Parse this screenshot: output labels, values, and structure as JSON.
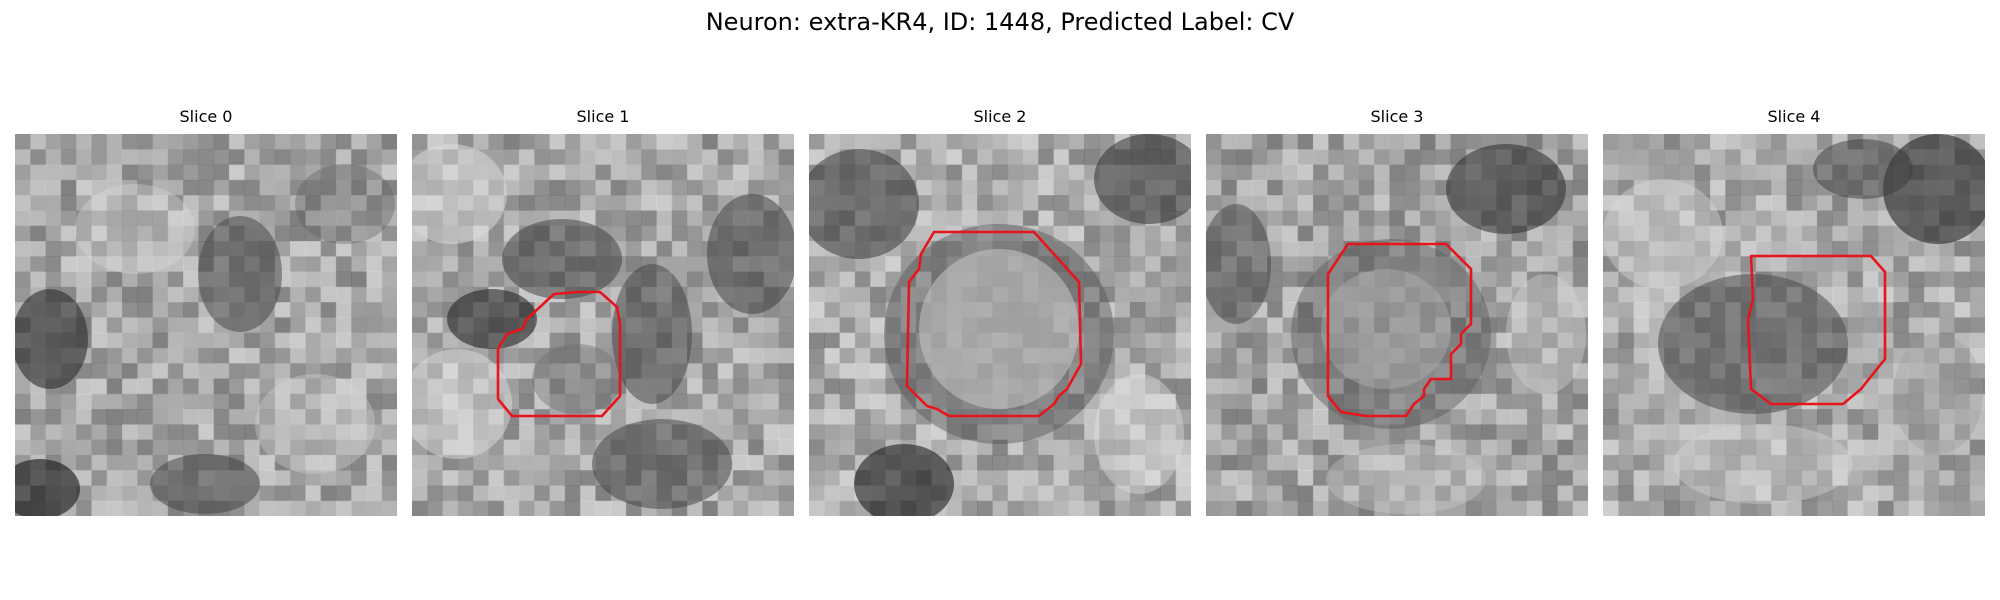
{
  "figure": {
    "title": "Neuron: extra-KR4, ID: 1448, Predicted Label: CV"
  },
  "slices": [
    {
      "title": "Slice 0",
      "has_contour": false
    },
    {
      "title": "Slice 1",
      "has_contour": true
    },
    {
      "title": "Slice 2",
      "has_contour": true
    },
    {
      "title": "Slice 3",
      "has_contour": true
    },
    {
      "title": "Slice 4",
      "has_contour": true
    }
  ],
  "style": {
    "contour_color": "#e8141c",
    "image_colormap": "grayscale"
  }
}
